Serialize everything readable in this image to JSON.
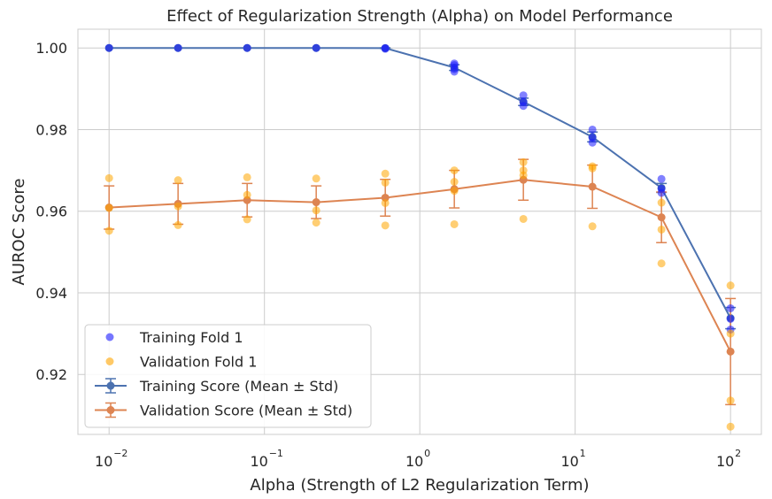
{
  "chart_data": {
    "type": "line",
    "title": "Effect of Regularization Strength (Alpha) on Model Performance",
    "xlabel": "Alpha (Strength of L2 Regularization Term)",
    "ylabel": "AUROC Score",
    "xscale": "log",
    "xlim": [
      0.0063,
      158
    ],
    "ylim": [
      0.9053,
      1.0046
    ],
    "grid": true,
    "legend_position": "lower-left",
    "x_ticks": [
      {
        "value": 0.01,
        "base": "10",
        "exp": "−2"
      },
      {
        "value": 0.1,
        "base": "10",
        "exp": "−1"
      },
      {
        "value": 1,
        "base": "10",
        "exp": "0"
      },
      {
        "value": 10,
        "base": "10",
        "exp": "1"
      },
      {
        "value": 100,
        "base": "10",
        "exp": "2"
      }
    ],
    "y_ticks": [
      {
        "value": 0.92,
        "label": "0.92"
      },
      {
        "value": 0.94,
        "label": "0.94"
      },
      {
        "value": 0.96,
        "label": "0.96"
      },
      {
        "value": 0.98,
        "label": "0.98"
      },
      {
        "value": 1.0,
        "label": "1.00"
      }
    ],
    "x": [
      0.01,
      0.0278,
      0.0774,
      0.2154,
      0.5995,
      1.6681,
      4.6416,
      12.9155,
      35.9381,
      100
    ],
    "series": [
      {
        "name": "Training Score (Mean ± Std)",
        "color": "#4c72b0",
        "mean": [
          1.0,
          1.0,
          1.0,
          1.0,
          0.99995,
          0.9952,
          0.9868,
          0.9782,
          0.9657,
          0.9338
        ],
        "std": [
          0.0,
          0.0,
          0.0,
          0.0,
          0.0001,
          0.0007,
          0.0009,
          0.0012,
          0.0011,
          0.0026
        ]
      },
      {
        "name": "Validation Score (Mean ± Std)",
        "color": "#dd8452",
        "mean": [
          0.9609,
          0.9618,
          0.9627,
          0.9622,
          0.9633,
          0.9654,
          0.9677,
          0.966,
          0.9585,
          0.9256
        ],
        "std": [
          0.0053,
          0.005,
          0.0041,
          0.004,
          0.0045,
          0.0046,
          0.005,
          0.0053,
          0.0062,
          0.013
        ]
      }
    ],
    "fold_points": [
      {
        "name": "Training Fold 1",
        "color": "#1a1aff",
        "points": [
          [
            0.01,
            1.0
          ],
          [
            0.0278,
            1.0
          ],
          [
            0.0774,
            1.0
          ],
          [
            0.2154,
            1.0
          ],
          [
            0.5995,
            1.0
          ],
          [
            0.5995,
            0.9998
          ],
          [
            1.6681,
            0.9962
          ],
          [
            1.6681,
            0.9958
          ],
          [
            1.6681,
            0.9948
          ],
          [
            1.6681,
            0.9942
          ],
          [
            4.6416,
            0.9884
          ],
          [
            4.6416,
            0.9868
          ],
          [
            4.6416,
            0.9858
          ],
          [
            12.9155,
            0.98
          ],
          [
            12.9155,
            0.978
          ],
          [
            12.9155,
            0.9768
          ],
          [
            35.9381,
            0.9679
          ],
          [
            35.9381,
            0.9655
          ],
          [
            35.9381,
            0.9645
          ],
          [
            100,
            0.9362
          ],
          [
            100,
            0.9336
          ],
          [
            100,
            0.931
          ]
        ]
      },
      {
        "name": "Validation Fold 1",
        "color": "#ffa500",
        "points": [
          [
            0.01,
            0.9681
          ],
          [
            0.01,
            0.9608
          ],
          [
            0.01,
            0.9552
          ],
          [
            0.0278,
            0.9676
          ],
          [
            0.0278,
            0.9612
          ],
          [
            0.0278,
            0.9566
          ],
          [
            0.0774,
            0.9683
          ],
          [
            0.0774,
            0.964
          ],
          [
            0.0774,
            0.958
          ],
          [
            0.2154,
            0.968
          ],
          [
            0.2154,
            0.9602
          ],
          [
            0.2154,
            0.9572
          ],
          [
            0.5995,
            0.9692
          ],
          [
            0.5995,
            0.967
          ],
          [
            0.5995,
            0.962
          ],
          [
            0.5995,
            0.9565
          ],
          [
            1.6681,
            0.97
          ],
          [
            1.6681,
            0.9672
          ],
          [
            1.6681,
            0.965
          ],
          [
            1.6681,
            0.9568
          ],
          [
            4.6416,
            0.972
          ],
          [
            4.6416,
            0.97
          ],
          [
            4.6416,
            0.9688
          ],
          [
            4.6416,
            0.9581
          ],
          [
            12.9155,
            0.971
          ],
          [
            12.9155,
            0.9705
          ],
          [
            12.9155,
            0.9563
          ],
          [
            35.9381,
            0.9621
          ],
          [
            35.9381,
            0.9555
          ],
          [
            35.9381,
            0.9472
          ],
          [
            100,
            0.9418
          ],
          [
            100,
            0.93
          ],
          [
            100,
            0.9136
          ],
          [
            100,
            0.9072
          ]
        ]
      }
    ],
    "legend": [
      {
        "label": "Training Fold 1",
        "kind": "scatter",
        "color": "#1a1aff"
      },
      {
        "label": "Validation Fold 1",
        "kind": "scatter",
        "color": "#ffa500"
      },
      {
        "label": "Training Score (Mean ± Std)",
        "kind": "errorbar",
        "color": "#4c72b0"
      },
      {
        "label": "Validation Score (Mean ± Std)",
        "kind": "errorbar",
        "color": "#dd8452"
      }
    ]
  }
}
